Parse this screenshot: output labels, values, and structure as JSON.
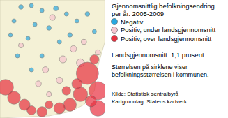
{
  "chart_data": {
    "type": "scatter",
    "title_lines": [
      "Gjennomsnittlig befolkningsendring",
      "per år. 2005-2009"
    ],
    "xlim": [
      0,
      150
    ],
    "ylim": [
      0,
      169
    ],
    "tick_labels": false,
    "series": [
      {
        "name": "Negativ",
        "color": "#2aa8e0",
        "x": [
          30,
          45,
          60,
          80,
          95,
          20,
          50,
          70,
          110,
          125,
          15,
          40,
          85,
          100,
          135,
          25,
          60,
          45
        ],
        "y": [
          159,
          161,
          154,
          157,
          149,
          139,
          134,
          129,
          139,
          149,
          119,
          114,
          109,
          119,
          124,
          89,
          89,
          69
        ],
        "sizes": [
          5000,
          3000,
          4000,
          6000,
          3000,
          4000,
          3000,
          5000,
          4000,
          5000,
          3000,
          4000,
          3000,
          5000,
          3000,
          3000,
          4000,
          3000
        ]
      },
      {
        "name": "Positiv, under landsgjennomsnitt",
        "color": "#f7c5cf",
        "x": [
          75,
          105,
          120,
          90,
          65,
          30,
          85,
          55,
          140,
          115,
          70
        ],
        "y": [
          144,
          99,
          109,
          84,
          69,
          104,
          54,
          49,
          94,
          79,
          34
        ],
        "sizes": [
          8000,
          10000,
          7000,
          12000,
          9000,
          6000,
          10000,
          8000,
          7000,
          15000,
          6000
        ]
      },
      {
        "name": "Positiv, over landsgjennomsnitt",
        "color": "#e8303f",
        "x": [
          8,
          20,
          35,
          125,
          140,
          115,
          100,
          85,
          60,
          45,
          140,
          130,
          110,
          135,
          70,
          95
        ],
        "y": [
          44,
          29,
          19,
          64,
          39,
          34,
          19,
          14,
          9,
          11,
          14,
          24,
          49,
          84,
          19,
          39
        ],
        "sizes": [
          60000,
          40000,
          30000,
          120000,
          80000,
          50000,
          40000,
          30000,
          25000,
          20000,
          60000,
          30000,
          25000,
          20000,
          15000,
          18000
        ]
      }
    ],
    "annotations": {
      "national_average": "Landsgjennomsnitt: 1,1 prosent",
      "note_lines": [
        "Størrelsen på sirklene viser",
        "befolkningsstørrelsen i kommunen."
      ],
      "source_lines": [
        "Kilde: Statistisk sentralbyrå",
        "Kartgrunnlag: Statens kartverk"
      ]
    }
  }
}
